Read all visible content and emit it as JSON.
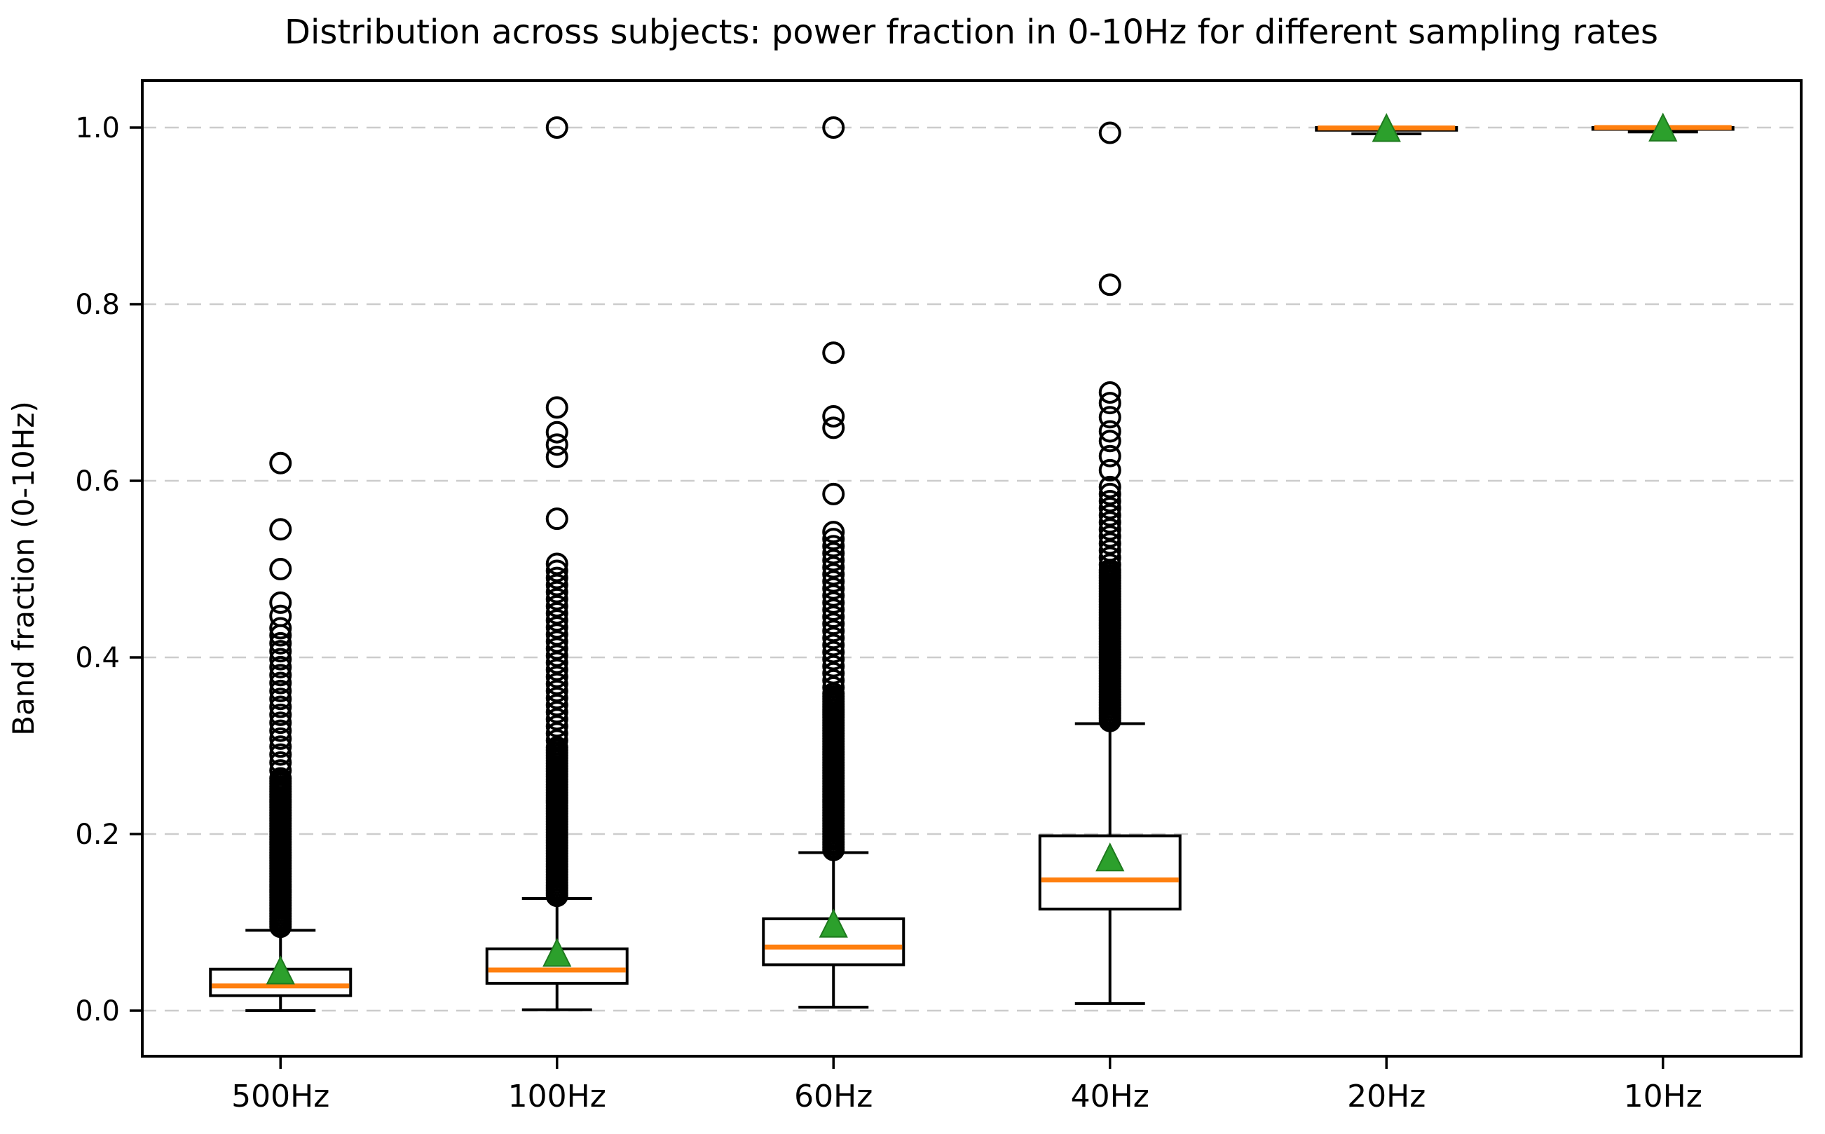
{
  "chart_data": {
    "type": "boxplot",
    "title": "Distribution across subjects: power fraction in 0-10Hz for different sampling rates",
    "xlabel": "",
    "ylabel": "Band fraction (0-10Hz)",
    "categories": [
      "500Hz",
      "100Hz",
      "60Hz",
      "40Hz",
      "20Hz",
      "10Hz"
    ],
    "yticks": [
      0.0,
      0.2,
      0.4,
      0.6,
      0.8,
      1.0
    ],
    "ytick_labels": [
      "0.0",
      "0.2",
      "0.4",
      "0.6",
      "0.8",
      "1.0"
    ],
    "ylim": [
      -0.052,
      1.053
    ],
    "grid": "horizontal-dashed",
    "legend": "none",
    "show_means": true,
    "colors": {
      "box": "#000000",
      "whisker": "#000000",
      "median": "#ff7f0e",
      "mean_marker": "#2ca02c",
      "mean_marker_edge": "#1e7a1e",
      "flier_edge": "#000000",
      "grid": "#cccccc",
      "spine": "#000000",
      "background": "#ffffff"
    },
    "series": [
      {
        "label": "500Hz",
        "whislo": 0.0,
        "q1": 0.017,
        "med": 0.028,
        "q3": 0.047,
        "whishi": 0.091,
        "mean": 0.044,
        "fliers_dense": [
          {
            "from": 0.095,
            "to": 0.265,
            "step": 0.003
          },
          {
            "from": 0.272,
            "to": 0.425,
            "step": 0.009
          }
        ],
        "fliers": [
          0.433,
          0.447,
          0.462,
          0.5,
          0.545,
          0.62
        ]
      },
      {
        "label": "100Hz",
        "whislo": 0.001,
        "q1": 0.031,
        "med": 0.046,
        "q3": 0.07,
        "whishi": 0.127,
        "mean": 0.064,
        "fliers_dense": [
          {
            "from": 0.13,
            "to": 0.3,
            "step": 0.003
          },
          {
            "from": 0.306,
            "to": 0.51,
            "step": 0.008
          }
        ],
        "fliers": [
          0.557,
          0.627,
          0.641,
          0.655,
          0.683,
          1.0
        ]
      },
      {
        "label": "60Hz",
        "whislo": 0.004,
        "q1": 0.052,
        "med": 0.072,
        "q3": 0.104,
        "whishi": 0.179,
        "mean": 0.097,
        "fliers_dense": [
          {
            "from": 0.182,
            "to": 0.36,
            "step": 0.003
          },
          {
            "from": 0.366,
            "to": 0.545,
            "step": 0.008
          }
        ],
        "fliers": [
          0.585,
          0.66,
          0.673,
          0.745,
          1.0
        ]
      },
      {
        "label": "40Hz",
        "whislo": 0.008,
        "q1": 0.115,
        "med": 0.148,
        "q3": 0.198,
        "whishi": 0.325,
        "mean": 0.172,
        "fliers_dense": [
          {
            "from": 0.328,
            "to": 0.5,
            "step": 0.003
          },
          {
            "from": 0.505,
            "to": 0.595,
            "step": 0.008
          }
        ],
        "fliers": [
          0.612,
          0.628,
          0.645,
          0.656,
          0.672,
          0.688,
          0.7,
          0.822,
          0.994
        ]
      },
      {
        "label": "20Hz",
        "whislo": 0.993,
        "q1": 0.997,
        "med": 0.9995,
        "q3": 1.0,
        "whishi": 1.0,
        "mean": 0.998,
        "fliers_dense": [],
        "fliers": []
      },
      {
        "label": "10Hz",
        "whislo": 0.995,
        "q1": 0.998,
        "med": 1.0,
        "q3": 1.0,
        "whishi": 1.0,
        "mean": 0.9985,
        "fliers_dense": [],
        "fliers": []
      }
    ]
  }
}
